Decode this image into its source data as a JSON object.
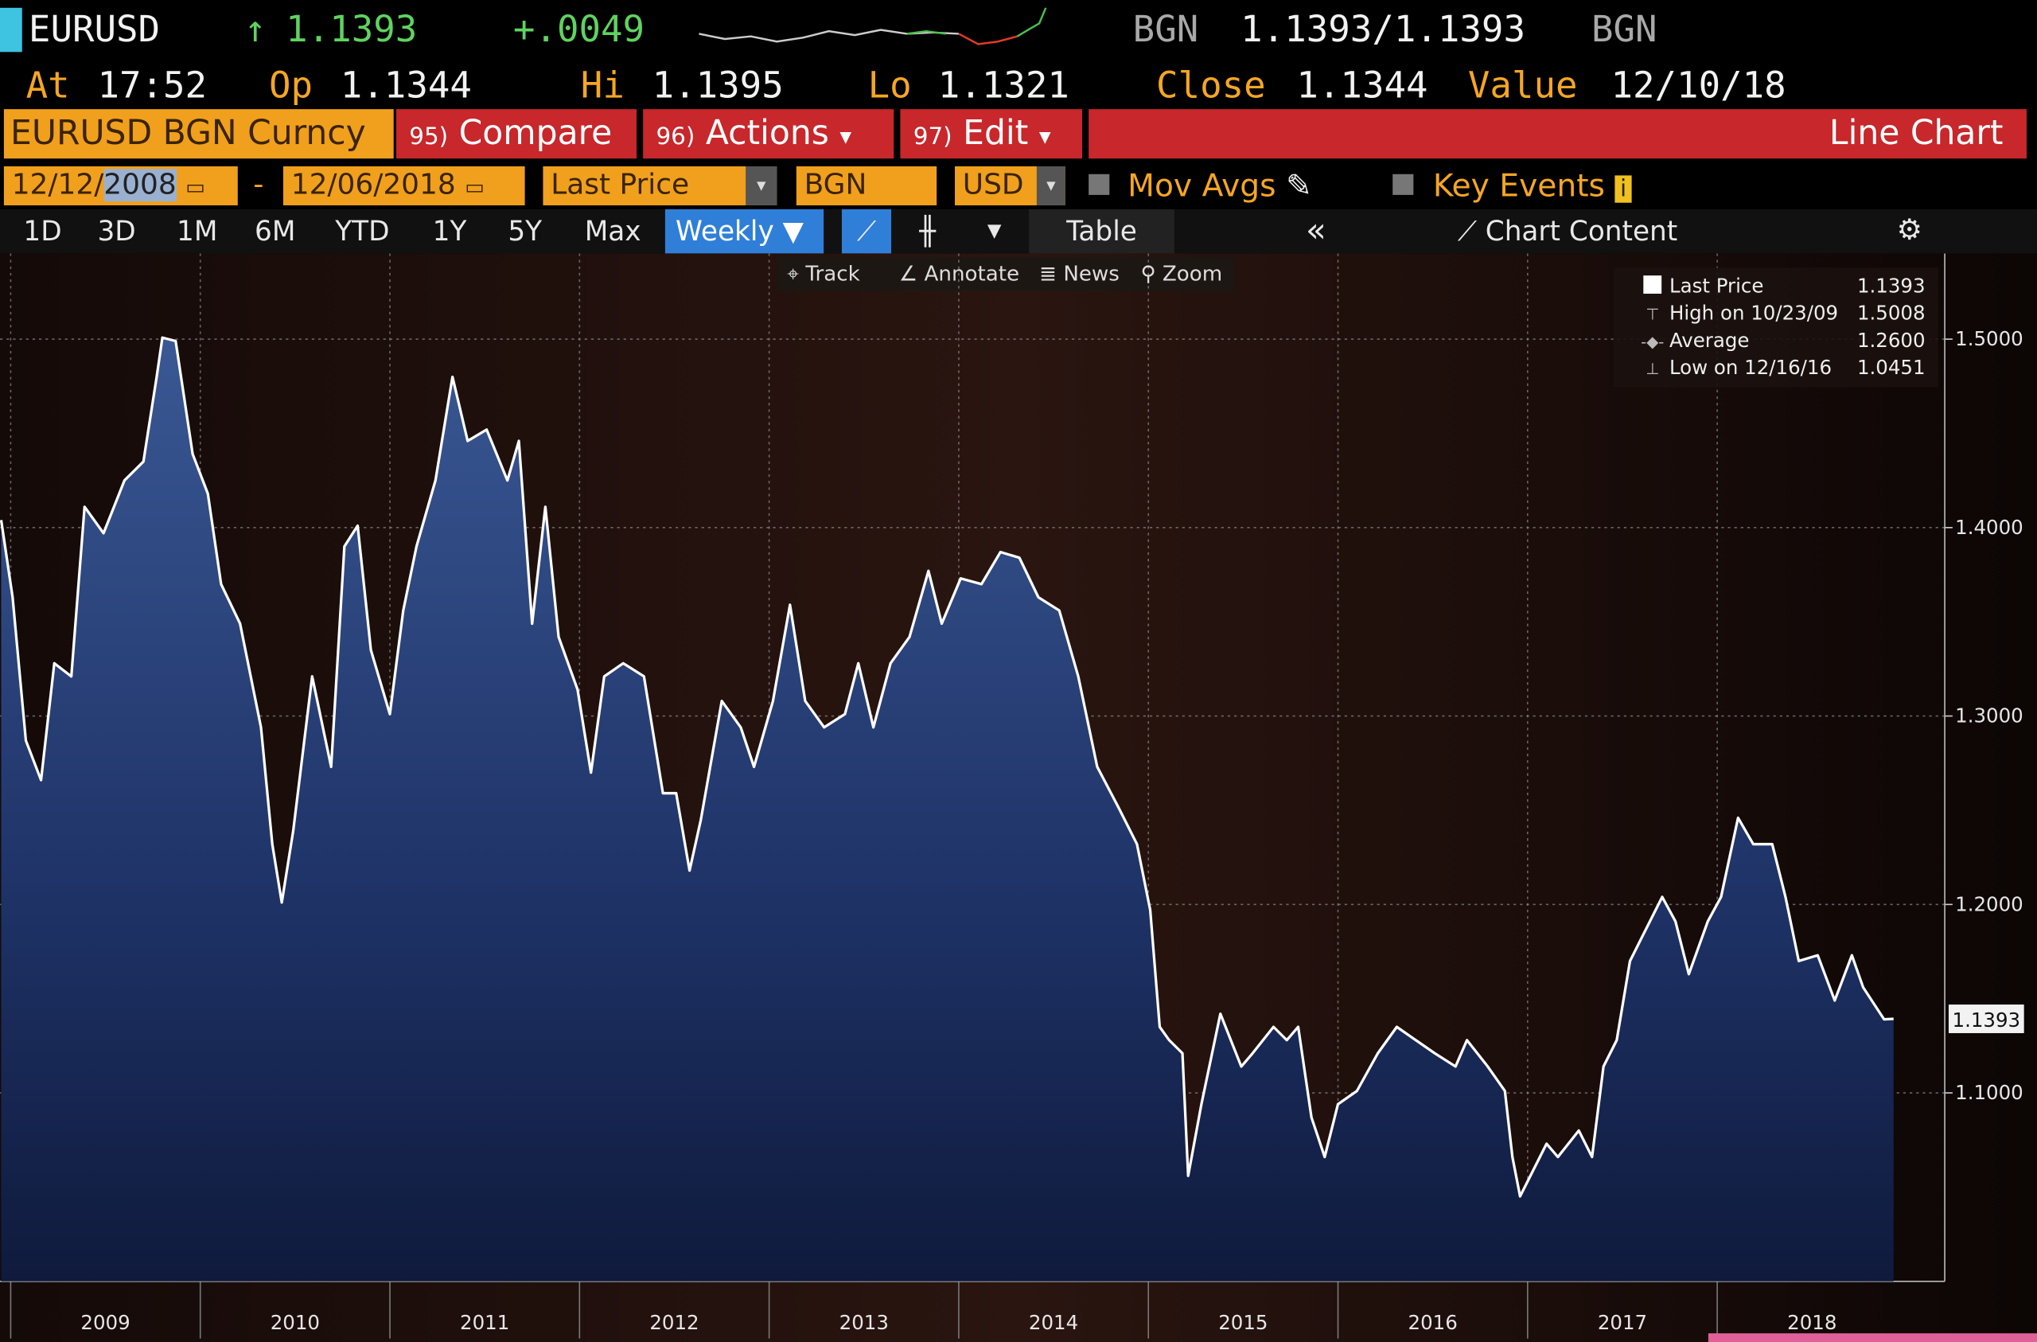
{
  "quote": {
    "ticker": "EURUSD",
    "arrow": "↑",
    "last": "1.1393",
    "change": "+.0049",
    "source": "BGN",
    "bid_ask": "1.1393/1.1393",
    "source2": "BGN",
    "fields": [
      {
        "label": "At",
        "value": "17:52"
      },
      {
        "label": "Op",
        "value": "1.1344"
      },
      {
        "label": "Hi",
        "value": "1.1395"
      },
      {
        "label": "Lo",
        "value": "1.1321"
      },
      {
        "label": "Close",
        "value": "1.1344"
      },
      {
        "label": "Value",
        "value": "12/10/18"
      }
    ]
  },
  "toolbar": {
    "security": "EURUSD BGN Curncy",
    "buttons": [
      {
        "num": "95)",
        "label": "Compare"
      },
      {
        "num": "96)",
        "label": "Actions"
      },
      {
        "num": "97)",
        "label": "Edit"
      }
    ],
    "view": "Line Chart"
  },
  "range": {
    "start_prefix": "12/12/",
    "start_year": "2008",
    "dash": "-",
    "end": "12/06/2018",
    "field": "Last Price",
    "source": "BGN",
    "currency": "USD",
    "mov_avgs": "Mov Avgs",
    "key_events": "Key Events"
  },
  "periods": [
    "1D",
    "3D",
    "1M",
    "6M",
    "YTD",
    "1Y",
    "5Y",
    "Max"
  ],
  "frequency": "Weekly",
  "table": "Table",
  "chart_content": "Chart Content",
  "tools": [
    "Track",
    "Annotate",
    "News",
    "Zoom"
  ],
  "chart_data": {
    "type": "area",
    "grid": true,
    "series": [
      {
        "name": "Last Price",
        "color": "#ffffff",
        "x": [
          2008.95,
          2009.01,
          2009.08,
          2009.16,
          2009.23,
          2009.32,
          2009.39,
          2009.49,
          2009.6,
          2009.7,
          2009.77,
          2009.8,
          2009.87,
          2009.96,
          2010.04,
          2010.11,
          2010.21,
          2010.32,
          2010.38,
          2010.43,
          2010.49,
          2010.59,
          2010.69,
          2010.76,
          2010.83,
          2010.9,
          2011.0,
          2011.07,
          2011.14,
          2011.24,
          2011.33,
          2011.41,
          2011.51,
          2011.62,
          2011.68,
          2011.75,
          2011.82,
          2011.89,
          2011.99,
          2012.06,
          2012.13,
          2012.23,
          2012.34,
          2012.44,
          2012.51,
          2012.58,
          2012.64,
          2012.75,
          2012.85,
          2012.92,
          2013.02,
          2013.11,
          2013.19,
          2013.29,
          2013.4,
          2013.47,
          2013.55,
          2013.64,
          2013.74,
          2013.84,
          2013.91,
          2014.01,
          2014.12,
          2014.22,
          2014.32,
          2014.42,
          2014.53,
          2014.63,
          2014.73,
          2014.84,
          2014.94,
          2015.01,
          2015.06,
          2015.11,
          2015.18,
          2015.21,
          2015.28,
          2015.38,
          2015.49,
          2015.55,
          2015.66,
          2015.73,
          2015.79,
          2015.86,
          2015.93,
          2016.0,
          2016.1,
          2016.21,
          2016.31,
          2016.41,
          2016.51,
          2016.62,
          2016.68,
          2016.79,
          2016.88,
          2016.92,
          2016.96,
          2017.1,
          2017.16,
          2017.27,
          2017.34,
          2017.4,
          2017.47,
          2017.54,
          2017.61,
          2017.71,
          2017.78,
          2017.85,
          2017.95,
          2018.02,
          2018.11,
          2018.19,
          2018.29,
          2018.36,
          2018.43,
          2018.53,
          2018.62,
          2018.71,
          2018.77,
          2018.88,
          2018.93
        ],
        "values": [
          1.404,
          1.363,
          1.287,
          1.266,
          1.328,
          1.321,
          1.411,
          1.397,
          1.425,
          1.435,
          1.48,
          1.5008,
          1.499,
          1.439,
          1.418,
          1.37,
          1.349,
          1.294,
          1.232,
          1.201,
          1.239,
          1.321,
          1.273,
          1.39,
          1.401,
          1.335,
          1.301,
          1.356,
          1.39,
          1.425,
          1.48,
          1.446,
          1.452,
          1.425,
          1.446,
          1.349,
          1.411,
          1.342,
          1.314,
          1.27,
          1.321,
          1.328,
          1.321,
          1.259,
          1.259,
          1.218,
          1.245,
          1.308,
          1.294,
          1.273,
          1.308,
          1.359,
          1.308,
          1.294,
          1.301,
          1.328,
          1.294,
          1.328,
          1.342,
          1.377,
          1.349,
          1.373,
          1.37,
          1.387,
          1.384,
          1.363,
          1.356,
          1.321,
          1.273,
          1.252,
          1.232,
          1.197,
          1.135,
          1.128,
          1.121,
          1.056,
          1.094,
          1.142,
          1.114,
          1.121,
          1.135,
          1.128,
          1.135,
          1.087,
          1.066,
          1.094,
          1.101,
          1.121,
          1.135,
          1.128,
          1.121,
          1.114,
          1.128,
          1.114,
          1.101,
          1.066,
          1.0451,
          1.073,
          1.066,
          1.08,
          1.066,
          1.114,
          1.128,
          1.17,
          1.184,
          1.204,
          1.191,
          1.163,
          1.191,
          1.204,
          1.246,
          1.232,
          1.232,
          1.204,
          1.17,
          1.173,
          1.149,
          1.173,
          1.156,
          1.139,
          1.1393
        ]
      }
    ],
    "last_value": "1.1393",
    "stats": [
      {
        "label": "High on 10/23/09",
        "value": "1.5008"
      },
      {
        "label": "Average",
        "value": "1.2600"
      },
      {
        "label": "Low on 12/16/16",
        "value": "1.0451"
      }
    ],
    "xlim": [
      2008.93,
      2019.2
    ],
    "xticks": [
      2009,
      2010,
      2011,
      2012,
      2013,
      2014,
      2015,
      2016,
      2017,
      2018
    ],
    "ylim": [
      1.0,
      1.5455
    ],
    "yticks": [
      {
        "value": 1.1,
        "label": "1.1000"
      },
      {
        "value": 1.2,
        "label": "1.2000"
      },
      {
        "value": 1.3,
        "label": "1.3000"
      },
      {
        "value": 1.4,
        "label": "1.4000"
      },
      {
        "value": 1.5,
        "label": "1.5000"
      }
    ]
  }
}
